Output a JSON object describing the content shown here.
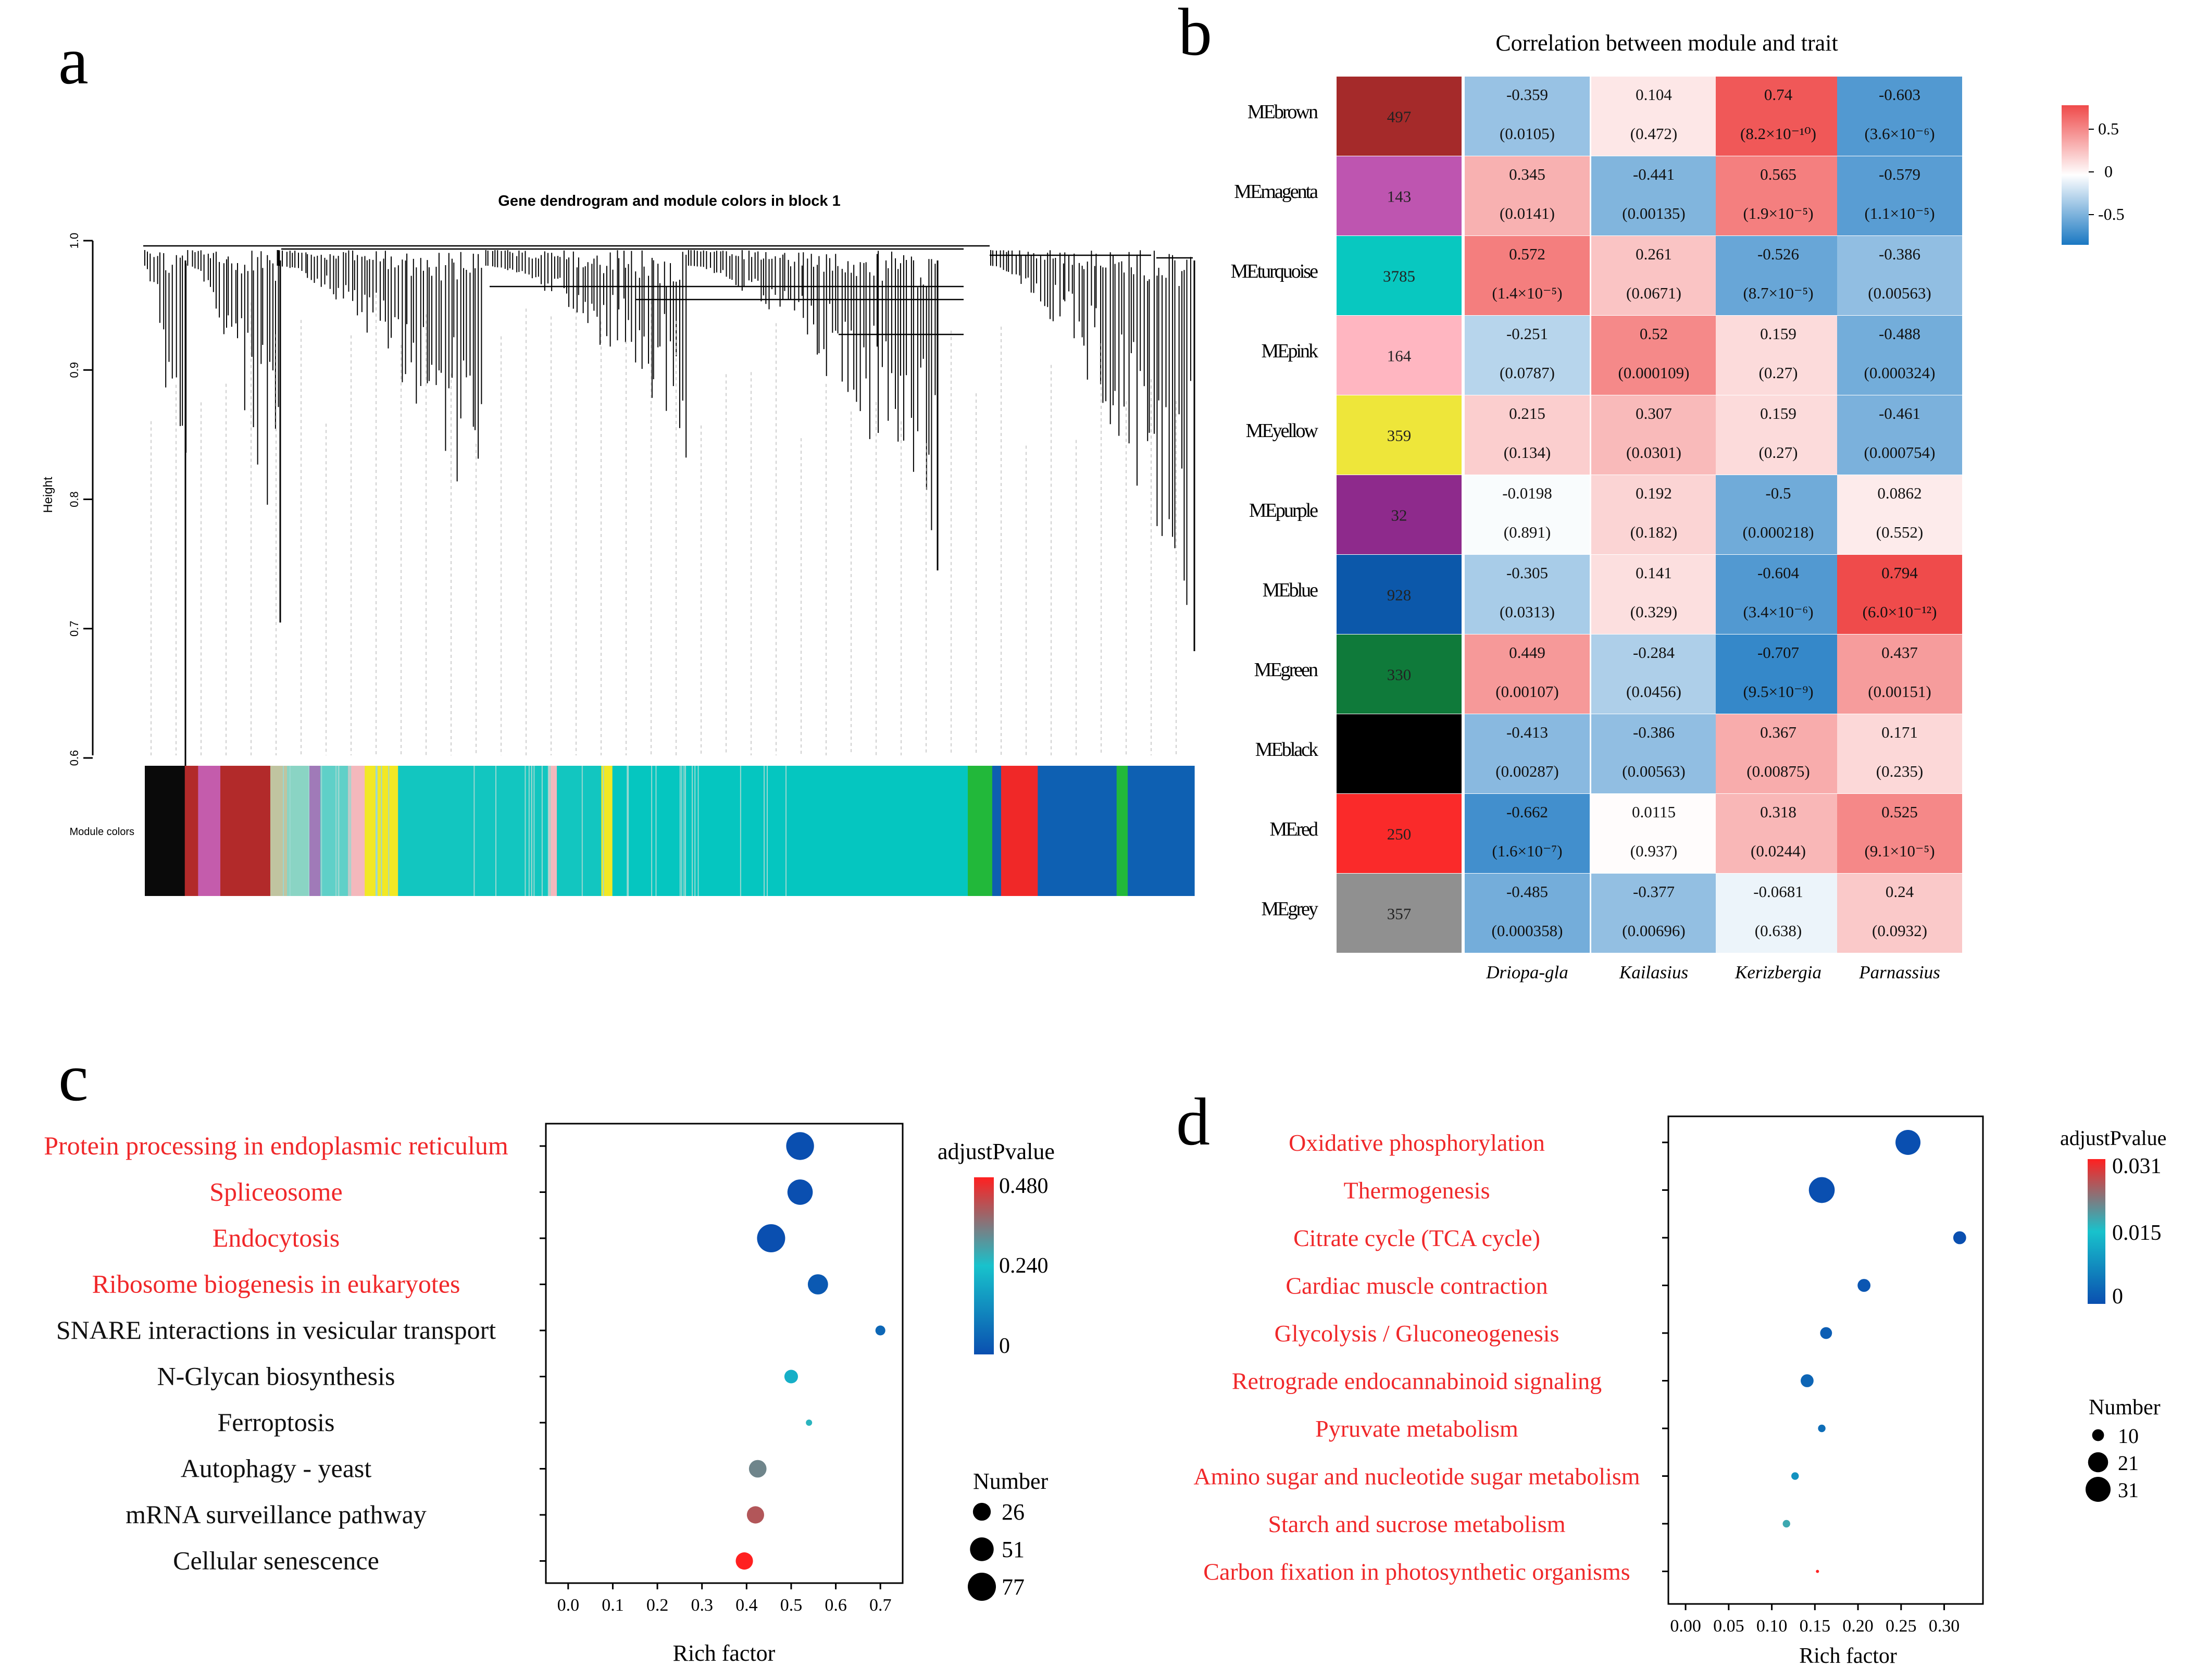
{
  "figure": {
    "panel_labels": {
      "a": "a",
      "b": "b",
      "c": "c",
      "d": "d"
    }
  },
  "chart_data": [
    {
      "panel": "a",
      "type": "dendrogram",
      "title": "Gene dendrogram and module colors in block 1",
      "ylabel": "Height",
      "ylim": [
        0.6,
        1.0
      ],
      "yticks": [
        "0.6",
        "0.7",
        "0.8",
        "0.9",
        "1.0"
      ],
      "color_bar_label": "Module colors",
      "module_color_sequence": [
        {
          "color": "#0a0a0a",
          "weight": 3.6
        },
        {
          "color": "#b22a2a",
          "weight": 1.2
        },
        {
          "color": "#c45cac",
          "weight": 2.0
        },
        {
          "color": "#b22a2a",
          "weight": 4.5
        },
        {
          "color": "#c0c4a0",
          "weight": 1.5
        },
        {
          "color": "#8ad4c4",
          "weight": 2.0
        },
        {
          "color": "#a07ab8",
          "weight": 1.0
        },
        {
          "color": "#5fd0c8",
          "weight": 2.5
        },
        {
          "color": "#f4b8bc",
          "weight": 1.5
        },
        {
          "color": "#f2e824",
          "weight": 3.0
        },
        {
          "color": "#12c6c0",
          "weight": 13.5
        },
        {
          "color": "#f4b8bc",
          "weight": 0.8
        },
        {
          "color": "#12c6c0",
          "weight": 4.0
        },
        {
          "color": "#f2e824",
          "weight": 1.0
        },
        {
          "color": "#05c6c0",
          "weight": 32.0
        },
        {
          "color": "#22b83a",
          "weight": 2.2
        },
        {
          "color": "#0e5fb0",
          "weight": 0.8
        },
        {
          "color": "#f02828",
          "weight": 3.3
        },
        {
          "color": "#0e60b2",
          "weight": 7.1
        },
        {
          "color": "#22b83a",
          "weight": 1.0
        },
        {
          "color": "#0e60b2",
          "weight": 6.0
        }
      ],
      "module_colors_note": "hex strings used for rendering"
    },
    {
      "panel": "b",
      "type": "heatmap",
      "title": "Correlation between module and trait",
      "columns": [
        "Driopa-gla",
        "Kailasius",
        "Kerizbergia",
        "Parnassius"
      ],
      "color_scale": {
        "min": -0.8,
        "max": 0.8,
        "tick_labels": [
          "0.5",
          "0",
          "-0.5"
        ],
        "low": "#1a78c2",
        "mid": "#ffffff",
        "high": "#ef4a4a"
      },
      "rows": [
        {
          "name": "MEbrown",
          "color": "#a52a2a",
          "size": "497",
          "values": [
            -0.359,
            0.104,
            0.74,
            -0.603
          ],
          "corr": [
            "-0.359",
            "0.104",
            "0.74",
            "-0.603"
          ],
          "pvals": [
            "(0.0105)",
            "(0.472)",
            "(8.2×10⁻¹⁰)",
            "(3.6×10⁻⁶)"
          ]
        },
        {
          "name": "MEmagenta",
          "color": "#be55b0",
          "size": "143",
          "values": [
            0.345,
            -0.441,
            0.565,
            -0.579
          ],
          "corr": [
            "0.345",
            "-0.441",
            "0.565",
            "-0.579"
          ],
          "pvals": [
            "(0.0141)",
            "(0.00135)",
            "(1.9×10⁻⁵)",
            "(1.1×10⁻⁵)"
          ]
        },
        {
          "name": "MEturquoise",
          "color": "#08c8c0",
          "size": "3785",
          "values": [
            0.572,
            0.261,
            -0.526,
            -0.386
          ],
          "corr": [
            "0.572",
            "0.261",
            "-0.526",
            "-0.386"
          ],
          "pvals": [
            "(1.4×10⁻⁵)",
            "(0.0671)",
            "(8.7×10⁻⁵)",
            "(0.00563)"
          ]
        },
        {
          "name": "MEpink",
          "color": "#ffb6c1",
          "size": "164",
          "values": [
            -0.251,
            0.52,
            0.159,
            -0.488
          ],
          "corr": [
            "-0.251",
            "0.52",
            "0.159",
            "-0.488"
          ],
          "pvals": [
            "(0.0787)",
            "(0.000109)",
            "(0.27)",
            "(0.000324)"
          ]
        },
        {
          "name": "MEyellow",
          "color": "#eee63a",
          "size": "359",
          "values": [
            0.215,
            0.307,
            0.159,
            -0.461
          ],
          "corr": [
            "0.215",
            "0.307",
            "0.159",
            "-0.461"
          ],
          "pvals": [
            "(0.134)",
            "(0.0301)",
            "(0.27)",
            "(0.000754)"
          ]
        },
        {
          "name": "MEpurple",
          "color": "#8e2a8c",
          "size": "32",
          "values": [
            -0.0198,
            0.192,
            -0.5,
            0.0862
          ],
          "corr": [
            "-0.0198",
            "0.192",
            "-0.5",
            "0.0862"
          ],
          "pvals": [
            "(0.891)",
            "(0.182)",
            "(0.000218)",
            "(0.552)"
          ]
        },
        {
          "name": "MEblue",
          "color": "#0c58aa",
          "size": "928",
          "values": [
            -0.305,
            0.141,
            -0.604,
            0.794
          ],
          "corr": [
            "-0.305",
            "0.141",
            "-0.604",
            "0.794"
          ],
          "pvals": [
            "(0.0313)",
            "(0.329)",
            "(3.4×10⁻⁶)",
            "(6.0×10⁻¹²)"
          ]
        },
        {
          "name": "MEgreen",
          "color": "#0f7a3a",
          "size": "330",
          "values": [
            0.449,
            -0.284,
            -0.707,
            0.437
          ],
          "corr": [
            "0.449",
            "-0.284",
            "-0.707",
            "0.437"
          ],
          "pvals": [
            "(0.00107)",
            "(0.0456)",
            "(9.5×10⁻⁹)",
            "(0.00151)"
          ]
        },
        {
          "name": "MEblack",
          "color": "#000000",
          "size": "",
          "values": [
            -0.413,
            -0.386,
            0.367,
            0.171
          ],
          "corr": [
            "-0.413",
            "-0.386",
            "0.367",
            "0.171"
          ],
          "pvals": [
            "(0.00287)",
            "(0.00563)",
            "(0.00875)",
            "(0.235)"
          ]
        },
        {
          "name": "MEred",
          "color": "#fa2a2a",
          "size": "250",
          "values": [
            -0.662,
            0.0115,
            0.318,
            0.525
          ],
          "corr": [
            "-0.662",
            "0.0115",
            "0.318",
            "0.525"
          ],
          "pvals": [
            "(1.6×10⁻⁷)",
            "(0.937)",
            "(0.0244)",
            "(9.1×10⁻⁵)"
          ]
        },
        {
          "name": "MEgrey",
          "color": "#909090",
          "size": "357",
          "values": [
            -0.485,
            -0.377,
            -0.0681,
            0.24
          ],
          "corr": [
            "-0.485",
            "-0.377",
            "-0.0681",
            "0.24"
          ],
          "pvals": [
            "(0.000358)",
            "(0.00696)",
            "(0.638)",
            "(0.0932)"
          ]
        }
      ]
    },
    {
      "panel": "c",
      "type": "scatter",
      "subtype": "bubble",
      "xlabel": "Rich factor",
      "xlim": [
        -0.05,
        0.75
      ],
      "xticks": [
        0.0,
        0.1,
        0.2,
        0.3,
        0.4,
        0.5,
        0.6,
        0.7
      ],
      "xtick_labels": [
        "0.0",
        "0.1",
        "0.2",
        "0.3",
        "0.4",
        "0.5",
        "0.6",
        "0.7"
      ],
      "color_legend": {
        "title": "adjustPvalue",
        "min": 0,
        "max": 0.48,
        "tick_labels": [
          "0.480",
          "0.240",
          "0"
        ]
      },
      "size_legend": {
        "title": "Number",
        "values": [
          26,
          51,
          77
        ],
        "labels": [
          "26",
          "51",
          "77"
        ]
      },
      "pathways": [
        {
          "name": "Protein processing in endoplasmic reticulum",
          "rich": 0.52,
          "number": 75,
          "padj": 0.0,
          "highlight": true
        },
        {
          "name": "Spliceosome",
          "rich": 0.52,
          "number": 60,
          "padj": 0.0,
          "highlight": true
        },
        {
          "name": "Endocytosis",
          "rich": 0.455,
          "number": 77,
          "padj": 0.0,
          "highlight": true
        },
        {
          "name": "Ribosome biogenesis in eukaryotes",
          "rich": 0.56,
          "number": 35,
          "padj": 0.02,
          "highlight": true
        },
        {
          "name": "SNARE interactions in vesicular transport",
          "rich": 0.7,
          "number": 8,
          "padj": 0.05,
          "highlight": false
        },
        {
          "name": "N-Glycan biosynthesis",
          "rich": 0.5,
          "number": 14,
          "padj": 0.2,
          "highlight": false
        },
        {
          "name": "Ferroptosis",
          "rich": 0.54,
          "number": 6,
          "padj": 0.26,
          "highlight": false
        },
        {
          "name": "Autophagy - yeast",
          "rich": 0.425,
          "number": 25,
          "padj": 0.33,
          "highlight": false
        },
        {
          "name": "mRNA surveillance pathway",
          "rich": 0.42,
          "number": 24,
          "padj": 0.4,
          "highlight": false
        },
        {
          "name": "Cellular senescence",
          "rich": 0.395,
          "number": 24,
          "padj": 0.48,
          "highlight": false
        }
      ]
    },
    {
      "panel": "d",
      "type": "scatter",
      "subtype": "bubble",
      "xlabel": "Rich factor",
      "xlim": [
        -0.02,
        0.345
      ],
      "xticks": [
        0.0,
        0.05,
        0.1,
        0.15,
        0.2,
        0.25,
        0.3
      ],
      "xtick_labels": [
        "0.00",
        "0.05",
        "0.10",
        "0.15",
        "0.20",
        "0.25",
        "0.30"
      ],
      "color_legend": {
        "title": "adjustPvalue",
        "min": 0,
        "max": 0.031,
        "tick_labels": [
          "0.031",
          "0.015",
          "0"
        ]
      },
      "size_legend": {
        "title": "Number",
        "values": [
          10,
          21,
          31
        ],
        "labels": [
          "10",
          "21",
          "31"
        ]
      },
      "pathways": [
        {
          "name": "Oxidative phosphorylation",
          "rich": 0.258,
          "number": 31,
          "padj": 0.0,
          "highlight": true
        },
        {
          "name": "Thermogenesis",
          "rich": 0.158,
          "number": 33,
          "padj": 0.0,
          "highlight": true
        },
        {
          "name": "Citrate cycle (TCA cycle)",
          "rich": 0.318,
          "number": 11,
          "padj": 0.0,
          "highlight": true
        },
        {
          "name": "Cardiac muscle contraction",
          "rich": 0.207,
          "number": 11,
          "padj": 0.001,
          "highlight": true
        },
        {
          "name": "Glycolysis / Gluconeogenesis",
          "rich": 0.163,
          "number": 10,
          "padj": 0.002,
          "highlight": true
        },
        {
          "name": "Retrograde endocannabinoid signaling",
          "rich": 0.141,
          "number": 11,
          "padj": 0.003,
          "highlight": true
        },
        {
          "name": "Pyruvate metabolism",
          "rich": 0.158,
          "number": 7,
          "padj": 0.004,
          "highlight": true
        },
        {
          "name": "Amino sugar and nucleotide sugar metabolism",
          "rich": 0.127,
          "number": 7,
          "padj": 0.009,
          "highlight": true
        },
        {
          "name": "Starch and sucrose metabolism",
          "rich": 0.117,
          "number": 7,
          "padj": 0.018,
          "highlight": true
        },
        {
          "name": "Carbon fixation in photosynthetic organisms",
          "rich": 0.153,
          "number": 6,
          "padj": 0.031,
          "highlight": true
        }
      ]
    }
  ]
}
